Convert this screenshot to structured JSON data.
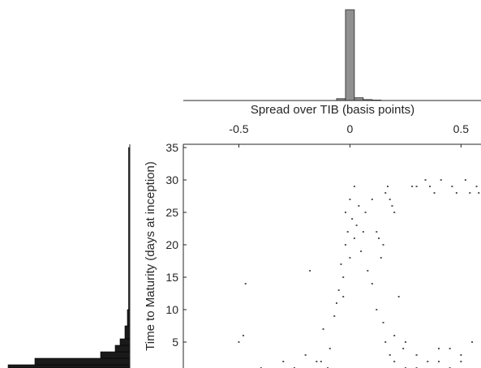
{
  "chart_data": {
    "type": "scatter",
    "title": "",
    "xlabel": "Spread over TIB (basis points)",
    "ylabel": "Time to Maturity (days at inception)",
    "xlim": [
      -0.75,
      0.59
    ],
    "ylim": [
      1,
      35.5
    ],
    "xticks": [
      -0.5,
      0,
      0.5
    ],
    "xtick_labels": [
      "-0.5",
      "0",
      "0.5"
    ],
    "yticks": [
      5,
      10,
      15,
      20,
      25,
      30,
      35
    ],
    "ytick_labels": [
      "5",
      "10",
      "15",
      "20",
      "25",
      "30",
      "35"
    ],
    "x_axis_position": "top",
    "grid": false,
    "legend": "none",
    "point_color": "#555555",
    "top_histogram": {
      "orientation": "vertical",
      "color": "#909090",
      "bins": [
        {
          "x0": -0.06,
          "x1": -0.02,
          "value": 0.02
        },
        {
          "x0": -0.02,
          "x1": 0.02,
          "value": 1.0
        },
        {
          "x0": 0.02,
          "x1": 0.06,
          "value": 0.03
        },
        {
          "x0": 0.06,
          "x1": 0.1,
          "value": 0.01
        },
        {
          "x0": 0.1,
          "x1": 0.14,
          "value": 0.005
        }
      ]
    },
    "left_histogram": {
      "orientation": "horizontal",
      "color": "#1a1a1a",
      "bins": [
        {
          "y0": 0.5,
          "y1": 1.5,
          "value": 1.0
        },
        {
          "y0": 1.5,
          "y1": 2.5,
          "value": 0.78
        },
        {
          "y0": 2.5,
          "y1": 3.5,
          "value": 0.24
        },
        {
          "y0": 3.5,
          "y1": 4.5,
          "value": 0.12
        },
        {
          "y0": 4.5,
          "y1": 5.5,
          "value": 0.08
        },
        {
          "y0": 5.5,
          "y1": 7.5,
          "value": 0.04
        },
        {
          "y0": 7.5,
          "y1": 10,
          "value": 0.02
        },
        {
          "y0": 10,
          "y1": 35,
          "value": 0.01
        }
      ]
    },
    "points": [
      {
        "x": -0.5,
        "y": 5
      },
      {
        "x": -0.48,
        "y": 6
      },
      {
        "x": -0.47,
        "y": 14
      },
      {
        "x": -0.4,
        "y": 1
      },
      {
        "x": -0.3,
        "y": 2
      },
      {
        "x": -0.25,
        "y": 1
      },
      {
        "x": -0.2,
        "y": 3
      },
      {
        "x": -0.15,
        "y": 2
      },
      {
        "x": -0.13,
        "y": 2
      },
      {
        "x": -0.1,
        "y": 1
      },
      {
        "x": -0.18,
        "y": 16
      },
      {
        "x": -0.12,
        "y": 7
      },
      {
        "x": -0.09,
        "y": 4
      },
      {
        "x": -0.07,
        "y": 9
      },
      {
        "x": -0.06,
        "y": 11
      },
      {
        "x": -0.05,
        "y": 13
      },
      {
        "x": -0.04,
        "y": 17
      },
      {
        "x": -0.03,
        "y": 15
      },
      {
        "x": -0.03,
        "y": 12
      },
      {
        "x": -0.02,
        "y": 20
      },
      {
        "x": -0.02,
        "y": 25
      },
      {
        "x": -0.01,
        "y": 22
      },
      {
        "x": 0.0,
        "y": 27
      },
      {
        "x": 0.0,
        "y": 18
      },
      {
        "x": 0.01,
        "y": 24
      },
      {
        "x": 0.02,
        "y": 29
      },
      {
        "x": 0.02,
        "y": 21
      },
      {
        "x": 0.03,
        "y": 23
      },
      {
        "x": 0.04,
        "y": 26
      },
      {
        "x": 0.05,
        "y": 19
      },
      {
        "x": 0.06,
        "y": 22
      },
      {
        "x": 0.07,
        "y": 25
      },
      {
        "x": 0.08,
        "y": 16
      },
      {
        "x": 0.1,
        "y": 27
      },
      {
        "x": 0.12,
        "y": 22
      },
      {
        "x": 0.13,
        "y": 21
      },
      {
        "x": 0.14,
        "y": 18
      },
      {
        "x": 0.15,
        "y": 20
      },
      {
        "x": 0.16,
        "y": 28
      },
      {
        "x": 0.17,
        "y": 29
      },
      {
        "x": 0.18,
        "y": 27
      },
      {
        "x": 0.19,
        "y": 26
      },
      {
        "x": 0.2,
        "y": 25
      },
      {
        "x": 0.1,
        "y": 14
      },
      {
        "x": 0.12,
        "y": 10
      },
      {
        "x": 0.15,
        "y": 8
      },
      {
        "x": 0.2,
        "y": 6
      },
      {
        "x": 0.22,
        "y": 12
      },
      {
        "x": 0.25,
        "y": 5
      },
      {
        "x": 0.3,
        "y": 3
      },
      {
        "x": 0.35,
        "y": 2
      },
      {
        "x": 0.4,
        "y": 4
      },
      {
        "x": 0.45,
        "y": 1
      },
      {
        "x": 0.5,
        "y": 3
      },
      {
        "x": 0.55,
        "y": 5
      },
      {
        "x": 0.2,
        "y": 2
      },
      {
        "x": 0.25,
        "y": 1
      },
      {
        "x": 0.3,
        "y": 1
      },
      {
        "x": 0.4,
        "y": 2
      },
      {
        "x": 0.45,
        "y": 4
      },
      {
        "x": 0.5,
        "y": 2
      },
      {
        "x": 0.24,
        "y": 4
      },
      {
        "x": 0.18,
        "y": 3
      },
      {
        "x": 0.16,
        "y": 5
      },
      {
        "x": 0.28,
        "y": 29
      },
      {
        "x": 0.3,
        "y": 29
      },
      {
        "x": 0.34,
        "y": 30
      },
      {
        "x": 0.36,
        "y": 29
      },
      {
        "x": 0.41,
        "y": 30
      },
      {
        "x": 0.46,
        "y": 29
      },
      {
        "x": 0.48,
        "y": 28
      },
      {
        "x": 0.52,
        "y": 30
      },
      {
        "x": 0.54,
        "y": 28
      },
      {
        "x": 0.57,
        "y": 29
      },
      {
        "x": 0.58,
        "y": 28
      },
      {
        "x": 0.38,
        "y": 28
      }
    ]
  }
}
